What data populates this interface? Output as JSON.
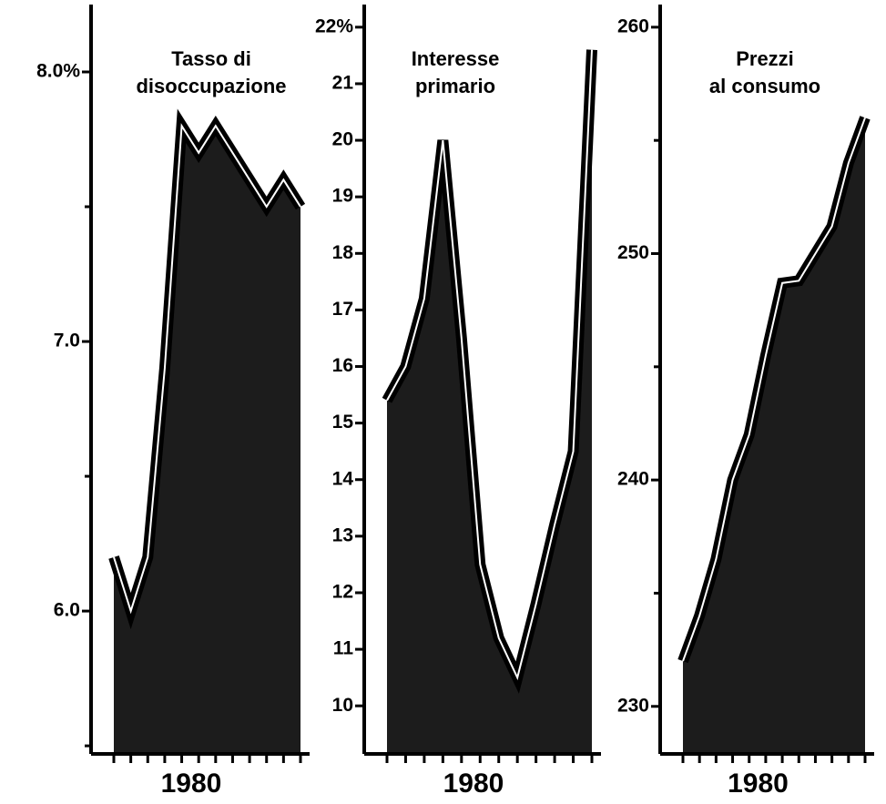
{
  "chart_data": [
    {
      "type": "area",
      "title": [
        "Tasso di",
        "disoccupazione"
      ],
      "x_label": "1980",
      "categories": [
        null,
        null,
        null,
        null,
        null,
        null,
        null,
        null,
        null,
        null,
        null,
        null
      ],
      "values": [
        6.2,
        6.0,
        6.2,
        6.9,
        7.8,
        7.7,
        7.8,
        7.7,
        7.6,
        7.5,
        7.6,
        7.5
      ],
      "color": "#000000",
      "ylim": [
        5.47,
        8.25
      ],
      "yticks": [
        {
          "value": 8,
          "label": "8.0%"
        },
        {
          "value": 7,
          "label": "7.0"
        },
        {
          "value": 6,
          "label": "6.0"
        }
      ],
      "minor_yticks": [
        7.5,
        6.5,
        5.5
      ]
    },
    {
      "type": "area",
      "title": [
        "Interesse",
        "primario"
      ],
      "x_label": "1980",
      "categories": [
        null,
        null,
        null,
        null,
        null,
        null,
        null,
        null,
        null,
        null,
        null,
        null
      ],
      "values": [
        15.4,
        16,
        17.2,
        20,
        16.5,
        12.5,
        11.2,
        10.5,
        11.8,
        13.2,
        14.5,
        21.6
      ],
      "color": "#000000",
      "ylim": [
        9.15,
        22.4
      ],
      "yticks": [
        {
          "value": 22,
          "label": "22%"
        },
        21,
        20,
        19,
        18,
        17,
        16,
        15,
        14,
        13,
        12,
        11,
        10
      ],
      "minor_yticks": []
    },
    {
      "type": "area",
      "title": [
        "Prezzi",
        "al consumo"
      ],
      "x_label": "1980",
      "categories": [
        null,
        null,
        null,
        null,
        null,
        null,
        null,
        null,
        null,
        null,
        null,
        null
      ],
      "values": [
        232,
        234,
        236.5,
        240,
        242,
        245.5,
        248.7,
        248.8,
        250,
        251.2,
        254,
        256
      ],
      "color": "#000000",
      "ylim": [
        227.9,
        261
      ],
      "yticks": [
        260,
        250,
        240,
        230
      ],
      "minor_yticks": [
        255,
        245,
        235
      ]
    }
  ]
}
